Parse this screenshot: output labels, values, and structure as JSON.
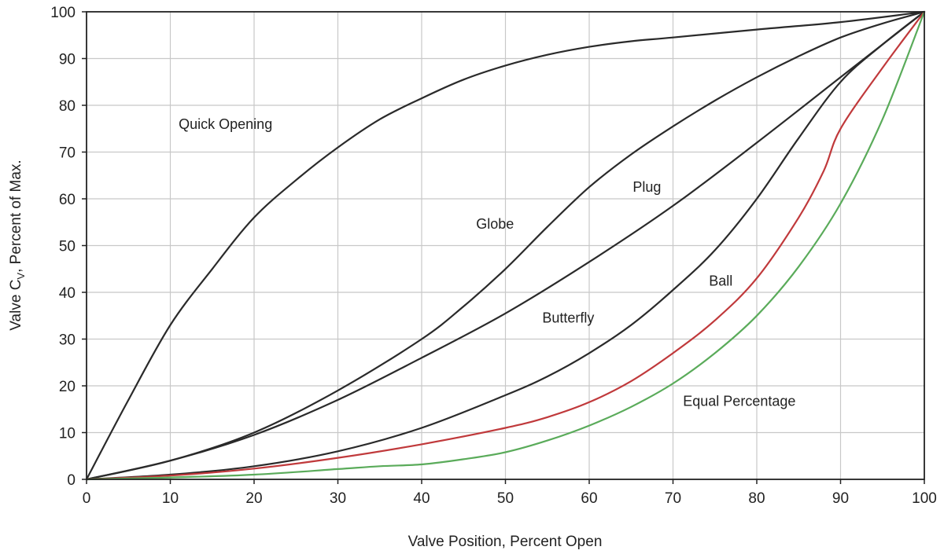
{
  "chart_data": {
    "type": "line",
    "title": "",
    "xlabel": "Valve Position, Percent Open",
    "ylabel_main": "Valve C",
    "ylabel_sub": "V",
    "ylabel_rest": ", Percent of Max.",
    "xlim": [
      0,
      100
    ],
    "ylim": [
      0,
      100
    ],
    "grid": true,
    "x_ticks": [
      "0",
      "10",
      "20",
      "30",
      "40",
      "50",
      "60",
      "70",
      "80",
      "90",
      "100"
    ],
    "y_ticks": [
      "0",
      "10",
      "20",
      "30",
      "40",
      "50",
      "60",
      "70",
      "80",
      "90",
      "100"
    ],
    "series": [
      {
        "name": "Quick Opening",
        "color": "#2a2a2a",
        "x": [
          0,
          5,
          10,
          15,
          20,
          25,
          30,
          35,
          40,
          45,
          50,
          55,
          60,
          65,
          70,
          80,
          90,
          100
        ],
        "y": [
          0,
          17,
          33,
          45,
          56,
          64,
          71,
          77,
          81.5,
          85.5,
          88.5,
          90.8,
          92.5,
          93.7,
          94.5,
          96.2,
          97.8,
          100
        ]
      },
      {
        "name": "Globe",
        "color": "#2a2a2a",
        "x": [
          0,
          10,
          20,
          30,
          40,
          45,
          50,
          55,
          60,
          65,
          70,
          75,
          80,
          85,
          90,
          95,
          100
        ],
        "y": [
          0,
          4,
          10,
          19,
          30,
          37,
          45,
          54,
          62.5,
          69.5,
          75.5,
          81,
          86,
          90.5,
          94.5,
          97.5,
          100
        ]
      },
      {
        "name": "Plug",
        "color": "#2a2a2a",
        "x": [
          0,
          10,
          20,
          30,
          40,
          50,
          60,
          70,
          80,
          90,
          95,
          100
        ],
        "y": [
          0,
          4,
          9.5,
          17,
          26,
          35.5,
          46.5,
          58.5,
          72,
          86,
          93,
          100
        ]
      },
      {
        "name": "Butterfly",
        "color": "#2a2a2a",
        "x": [
          0,
          10,
          20,
          30,
          40,
          50,
          55,
          60,
          65,
          70,
          75,
          80,
          85,
          90,
          95,
          100
        ],
        "y": [
          0,
          1,
          2.8,
          6,
          11,
          18,
          22,
          27,
          33,
          40.5,
          49,
          60,
          73,
          85,
          93,
          100
        ]
      },
      {
        "name": "Ball",
        "color": "#c0393b",
        "x": [
          0,
          10,
          20,
          30,
          40,
          50,
          55,
          60,
          65,
          70,
          75,
          80,
          85,
          88,
          90,
          95,
          100
        ],
        "y": [
          0,
          0.8,
          2.3,
          4.6,
          7.5,
          11,
          13.3,
          16.5,
          21,
          27,
          34,
          43,
          56,
          66,
          75,
          88,
          100
        ]
      },
      {
        "name": "Equal Percentage",
        "color": "#5aab5a",
        "x": [
          0,
          10,
          20,
          30,
          35,
          40,
          45,
          50,
          55,
          60,
          65,
          70,
          75,
          80,
          85,
          90,
          95,
          100
        ],
        "y": [
          0,
          0.4,
          1,
          2.2,
          2.8,
          3.2,
          4.3,
          5.8,
          8.3,
          11.5,
          15.5,
          20.5,
          27,
          35,
          45.5,
          59,
          77,
          100
        ]
      }
    ],
    "annotations": [
      {
        "text": "Quick Opening",
        "x": 11,
        "y": 75
      },
      {
        "text": "Globe",
        "x": 46.5,
        "y": 53.6
      },
      {
        "text": "Plug",
        "x": 65.2,
        "y": 61.5
      },
      {
        "text": "Ball",
        "x": 74.3,
        "y": 41.4
      },
      {
        "text": "Butterfly",
        "x": 54.4,
        "y": 33.5
      },
      {
        "text": "Equal Percentage",
        "x": 71.2,
        "y": 15.7
      }
    ]
  }
}
